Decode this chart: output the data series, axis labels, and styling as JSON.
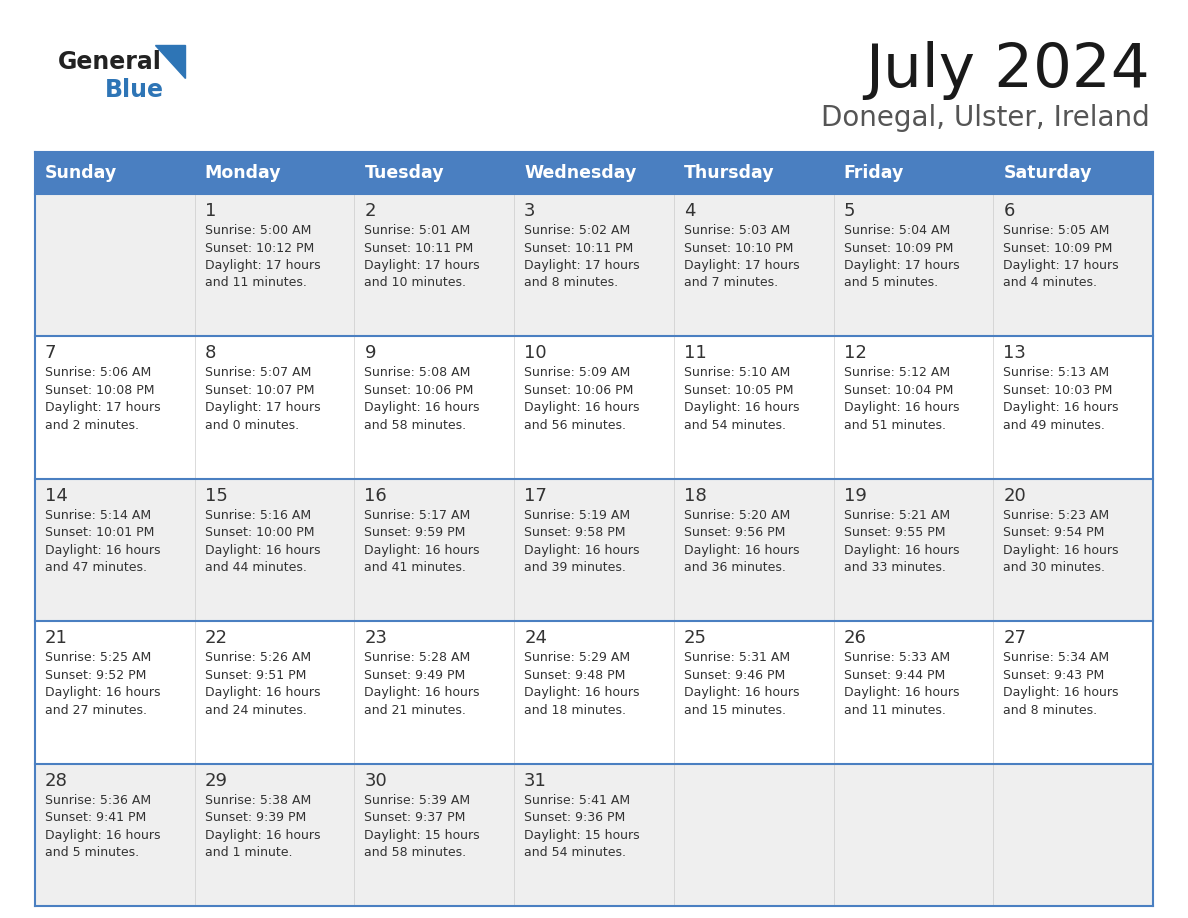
{
  "title": "July 2024",
  "subtitle": "Donegal, Ulster, Ireland",
  "header_bg": "#4a7fc1",
  "header_text_color": "#FFFFFF",
  "days_of_week": [
    "Sunday",
    "Monday",
    "Tuesday",
    "Wednesday",
    "Thursday",
    "Friday",
    "Saturday"
  ],
  "row_bg_even": "#EFEFEF",
  "row_bg_odd": "#FFFFFF",
  "divider_color": "#4a7fc1",
  "cell_text_color": "#333333",
  "logo_general_color": "#222222",
  "logo_blue_color": "#2E75B6",
  "calendar": [
    [
      {
        "day": "",
        "info": ""
      },
      {
        "day": "1",
        "info": "Sunrise: 5:00 AM\nSunset: 10:12 PM\nDaylight: 17 hours\nand 11 minutes."
      },
      {
        "day": "2",
        "info": "Sunrise: 5:01 AM\nSunset: 10:11 PM\nDaylight: 17 hours\nand 10 minutes."
      },
      {
        "day": "3",
        "info": "Sunrise: 5:02 AM\nSunset: 10:11 PM\nDaylight: 17 hours\nand 8 minutes."
      },
      {
        "day": "4",
        "info": "Sunrise: 5:03 AM\nSunset: 10:10 PM\nDaylight: 17 hours\nand 7 minutes."
      },
      {
        "day": "5",
        "info": "Sunrise: 5:04 AM\nSunset: 10:09 PM\nDaylight: 17 hours\nand 5 minutes."
      },
      {
        "day": "6",
        "info": "Sunrise: 5:05 AM\nSunset: 10:09 PM\nDaylight: 17 hours\nand 4 minutes."
      }
    ],
    [
      {
        "day": "7",
        "info": "Sunrise: 5:06 AM\nSunset: 10:08 PM\nDaylight: 17 hours\nand 2 minutes."
      },
      {
        "day": "8",
        "info": "Sunrise: 5:07 AM\nSunset: 10:07 PM\nDaylight: 17 hours\nand 0 minutes."
      },
      {
        "day": "9",
        "info": "Sunrise: 5:08 AM\nSunset: 10:06 PM\nDaylight: 16 hours\nand 58 minutes."
      },
      {
        "day": "10",
        "info": "Sunrise: 5:09 AM\nSunset: 10:06 PM\nDaylight: 16 hours\nand 56 minutes."
      },
      {
        "day": "11",
        "info": "Sunrise: 5:10 AM\nSunset: 10:05 PM\nDaylight: 16 hours\nand 54 minutes."
      },
      {
        "day": "12",
        "info": "Sunrise: 5:12 AM\nSunset: 10:04 PM\nDaylight: 16 hours\nand 51 minutes."
      },
      {
        "day": "13",
        "info": "Sunrise: 5:13 AM\nSunset: 10:03 PM\nDaylight: 16 hours\nand 49 minutes."
      }
    ],
    [
      {
        "day": "14",
        "info": "Sunrise: 5:14 AM\nSunset: 10:01 PM\nDaylight: 16 hours\nand 47 minutes."
      },
      {
        "day": "15",
        "info": "Sunrise: 5:16 AM\nSunset: 10:00 PM\nDaylight: 16 hours\nand 44 minutes."
      },
      {
        "day": "16",
        "info": "Sunrise: 5:17 AM\nSunset: 9:59 PM\nDaylight: 16 hours\nand 41 minutes."
      },
      {
        "day": "17",
        "info": "Sunrise: 5:19 AM\nSunset: 9:58 PM\nDaylight: 16 hours\nand 39 minutes."
      },
      {
        "day": "18",
        "info": "Sunrise: 5:20 AM\nSunset: 9:56 PM\nDaylight: 16 hours\nand 36 minutes."
      },
      {
        "day": "19",
        "info": "Sunrise: 5:21 AM\nSunset: 9:55 PM\nDaylight: 16 hours\nand 33 minutes."
      },
      {
        "day": "20",
        "info": "Sunrise: 5:23 AM\nSunset: 9:54 PM\nDaylight: 16 hours\nand 30 minutes."
      }
    ],
    [
      {
        "day": "21",
        "info": "Sunrise: 5:25 AM\nSunset: 9:52 PM\nDaylight: 16 hours\nand 27 minutes."
      },
      {
        "day": "22",
        "info": "Sunrise: 5:26 AM\nSunset: 9:51 PM\nDaylight: 16 hours\nand 24 minutes."
      },
      {
        "day": "23",
        "info": "Sunrise: 5:28 AM\nSunset: 9:49 PM\nDaylight: 16 hours\nand 21 minutes."
      },
      {
        "day": "24",
        "info": "Sunrise: 5:29 AM\nSunset: 9:48 PM\nDaylight: 16 hours\nand 18 minutes."
      },
      {
        "day": "25",
        "info": "Sunrise: 5:31 AM\nSunset: 9:46 PM\nDaylight: 16 hours\nand 15 minutes."
      },
      {
        "day": "26",
        "info": "Sunrise: 5:33 AM\nSunset: 9:44 PM\nDaylight: 16 hours\nand 11 minutes."
      },
      {
        "day": "27",
        "info": "Sunrise: 5:34 AM\nSunset: 9:43 PM\nDaylight: 16 hours\nand 8 minutes."
      }
    ],
    [
      {
        "day": "28",
        "info": "Sunrise: 5:36 AM\nSunset: 9:41 PM\nDaylight: 16 hours\nand 5 minutes."
      },
      {
        "day": "29",
        "info": "Sunrise: 5:38 AM\nSunset: 9:39 PM\nDaylight: 16 hours\nand 1 minute."
      },
      {
        "day": "30",
        "info": "Sunrise: 5:39 AM\nSunset: 9:37 PM\nDaylight: 15 hours\nand 58 minutes."
      },
      {
        "day": "31",
        "info": "Sunrise: 5:41 AM\nSunset: 9:36 PM\nDaylight: 15 hours\nand 54 minutes."
      },
      {
        "day": "",
        "info": ""
      },
      {
        "day": "",
        "info": ""
      },
      {
        "day": "",
        "info": ""
      }
    ]
  ]
}
